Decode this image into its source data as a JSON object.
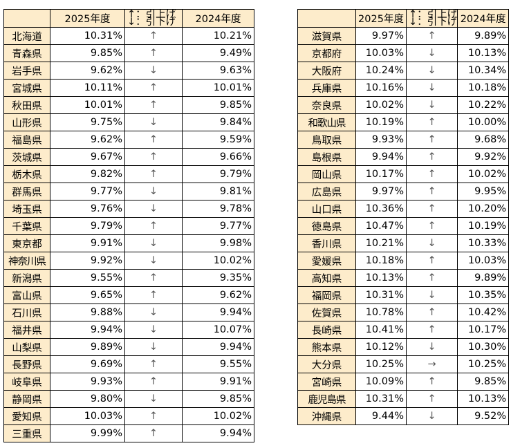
{
  "headers": {
    "blank": "",
    "year_2025": "2025年度",
    "legend_up": "↑：引上げ",
    "legend_down": "↓：引下げ",
    "year_2024": "2024年度"
  },
  "left_table": [
    {
      "pref": "北海道",
      "y2025": "10.31%",
      "arrow": "↑",
      "y2024": "10.21%"
    },
    {
      "pref": "青森県",
      "y2025": "9.85%",
      "arrow": "↑",
      "y2024": "9.49%"
    },
    {
      "pref": "岩手県",
      "y2025": "9.62%",
      "arrow": "↓",
      "y2024": "9.63%"
    },
    {
      "pref": "宮城県",
      "y2025": "10.11%",
      "arrow": "↑",
      "y2024": "10.01%"
    },
    {
      "pref": "秋田県",
      "y2025": "10.01%",
      "arrow": "↑",
      "y2024": "9.85%"
    },
    {
      "pref": "山形県",
      "y2025": "9.75%",
      "arrow": "↓",
      "y2024": "9.84%"
    },
    {
      "pref": "福島県",
      "y2025": "9.62%",
      "arrow": "↑",
      "y2024": "9.59%"
    },
    {
      "pref": "茨城県",
      "y2025": "9.67%",
      "arrow": "↑",
      "y2024": "9.66%"
    },
    {
      "pref": "栃木県",
      "y2025": "9.82%",
      "arrow": "↑",
      "y2024": "9.79%"
    },
    {
      "pref": "群馬県",
      "y2025": "9.77%",
      "arrow": "↓",
      "y2024": "9.81%"
    },
    {
      "pref": "埼玉県",
      "y2025": "9.76%",
      "arrow": "↓",
      "y2024": "9.78%"
    },
    {
      "pref": "千葉県",
      "y2025": "9.79%",
      "arrow": "↑",
      "y2024": "9.77%"
    },
    {
      "pref": "東京都",
      "y2025": "9.91%",
      "arrow": "↓",
      "y2024": "9.98%"
    },
    {
      "pref": "神奈川県",
      "y2025": "9.92%",
      "arrow": "↓",
      "y2024": "10.02%"
    },
    {
      "pref": "新潟県",
      "y2025": "9.55%",
      "arrow": "↑",
      "y2024": "9.35%"
    },
    {
      "pref": "富山県",
      "y2025": "9.65%",
      "arrow": "↑",
      "y2024": "9.62%"
    },
    {
      "pref": "石川県",
      "y2025": "9.88%",
      "arrow": "↓",
      "y2024": "9.94%"
    },
    {
      "pref": "福井県",
      "y2025": "9.94%",
      "arrow": "↓",
      "y2024": "10.07%"
    },
    {
      "pref": "山梨県",
      "y2025": "9.89%",
      "arrow": "↓",
      "y2024": "9.94%"
    },
    {
      "pref": "長野県",
      "y2025": "9.69%",
      "arrow": "↑",
      "y2024": "9.55%"
    },
    {
      "pref": "岐阜県",
      "y2025": "9.93%",
      "arrow": "↑",
      "y2024": "9.91%"
    },
    {
      "pref": "静岡県",
      "y2025": "9.80%",
      "arrow": "↓",
      "y2024": "9.85%"
    },
    {
      "pref": "愛知県",
      "y2025": "10.03%",
      "arrow": "↑",
      "y2024": "10.02%"
    },
    {
      "pref": "三重県",
      "y2025": "9.99%",
      "arrow": "↑",
      "y2024": "9.94%"
    }
  ],
  "right_table": [
    {
      "pref": "滋賀県",
      "y2025": "9.97%",
      "arrow": "↑",
      "y2024": "9.89%"
    },
    {
      "pref": "京都府",
      "y2025": "10.03%",
      "arrow": "↓",
      "y2024": "10.13%"
    },
    {
      "pref": "大阪府",
      "y2025": "10.24%",
      "arrow": "↓",
      "y2024": "10.34%"
    },
    {
      "pref": "兵庫県",
      "y2025": "10.16%",
      "arrow": "↓",
      "y2024": "10.18%"
    },
    {
      "pref": "奈良県",
      "y2025": "10.02%",
      "arrow": "↓",
      "y2024": "10.22%"
    },
    {
      "pref": "和歌山県",
      "y2025": "10.19%",
      "arrow": "↑",
      "y2024": "10.00%"
    },
    {
      "pref": "鳥取県",
      "y2025": "9.93%",
      "arrow": "↑",
      "y2024": "9.68%"
    },
    {
      "pref": "島根県",
      "y2025": "9.94%",
      "arrow": "↑",
      "y2024": "9.92%"
    },
    {
      "pref": "岡山県",
      "y2025": "10.17%",
      "arrow": "↑",
      "y2024": "10.02%"
    },
    {
      "pref": "広島県",
      "y2025": "9.97%",
      "arrow": "↑",
      "y2024": "9.95%"
    },
    {
      "pref": "山口県",
      "y2025": "10.36%",
      "arrow": "↑",
      "y2024": "10.20%"
    },
    {
      "pref": "徳島県",
      "y2025": "10.47%",
      "arrow": "↑",
      "y2024": "10.19%"
    },
    {
      "pref": "香川県",
      "y2025": "10.21%",
      "arrow": "↓",
      "y2024": "10.33%"
    },
    {
      "pref": "愛媛県",
      "y2025": "10.18%",
      "arrow": "↑",
      "y2024": "10.03%"
    },
    {
      "pref": "高知県",
      "y2025": "10.13%",
      "arrow": "↑",
      "y2024": "9.89%"
    },
    {
      "pref": "福岡県",
      "y2025": "10.31%",
      "arrow": "↓",
      "y2024": "10.35%"
    },
    {
      "pref": "佐賀県",
      "y2025": "10.78%",
      "arrow": "↑",
      "y2024": "10.42%"
    },
    {
      "pref": "長崎県",
      "y2025": "10.41%",
      "arrow": "↑",
      "y2024": "10.17%"
    },
    {
      "pref": "熊本県",
      "y2025": "10.12%",
      "arrow": "↓",
      "y2024": "10.30%"
    },
    {
      "pref": "大分県",
      "y2025": "10.25%",
      "arrow": "→",
      "y2024": "10.25%"
    },
    {
      "pref": "宮崎県",
      "y2025": "10.09%",
      "arrow": "↑",
      "y2024": "9.85%"
    },
    {
      "pref": "鹿児島県",
      "y2025": "10.31%",
      "arrow": "↑",
      "y2024": "10.13%"
    },
    {
      "pref": "沖縄県",
      "y2025": "9.44%",
      "arrow": "↓",
      "y2024": "9.52%"
    }
  ],
  "colors": {
    "header_bg": "#fdeccb",
    "border": "#000000",
    "arrow": "#555555"
  }
}
